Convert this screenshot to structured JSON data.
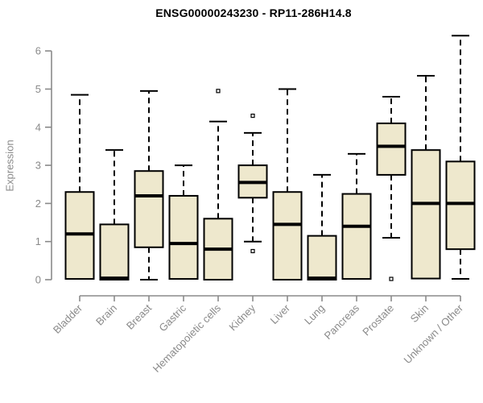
{
  "title": "ENSG00000243230 - RP11-286H14.8",
  "chart_data": {
    "type": "boxplot",
    "title": "ENSG00000243230 - RP11-286H14.8",
    "xlabel": "",
    "ylabel": "Expression",
    "ylim": [
      0,
      6.5
    ],
    "yticks": [
      0,
      1,
      2,
      3,
      4,
      5,
      6
    ],
    "grid": false,
    "categories": [
      "Bladder",
      "Brain",
      "Breast",
      "Gastric",
      "Hematopoietic cells",
      "Kidney",
      "Liver",
      "Lung",
      "Pancreas",
      "Prostate",
      "Skin",
      "Unknown / Other"
    ],
    "boxes": [
      {
        "category": "Bladder",
        "whisker_low": 0,
        "q1": 0.02,
        "median": 1.2,
        "q3": 2.3,
        "whisker_high": 4.85,
        "outliers": []
      },
      {
        "category": "Brain",
        "whisker_low": 0,
        "q1": 0,
        "median": 0.04,
        "q3": 1.45,
        "whisker_high": 3.4,
        "outliers": []
      },
      {
        "category": "Breast",
        "whisker_low": 0,
        "q1": 0.85,
        "median": 2.2,
        "q3": 2.85,
        "whisker_high": 4.95,
        "outliers": []
      },
      {
        "category": "Gastric",
        "whisker_low": 0,
        "q1": 0.02,
        "median": 0.95,
        "q3": 2.2,
        "whisker_high": 3.0,
        "outliers": []
      },
      {
        "category": "Hematopoietic cells",
        "whisker_low": 0,
        "q1": 0,
        "median": 0.8,
        "q3": 1.6,
        "whisker_high": 4.15,
        "outliers": [
          4.95
        ]
      },
      {
        "category": "Kidney",
        "whisker_low": 1.0,
        "q1": 2.15,
        "median": 2.55,
        "q3": 3.0,
        "whisker_high": 3.85,
        "outliers": [
          4.3,
          0.75
        ]
      },
      {
        "category": "Liver",
        "whisker_low": 0,
        "q1": 0,
        "median": 1.45,
        "q3": 2.3,
        "whisker_high": 5.0,
        "outliers": []
      },
      {
        "category": "Lung",
        "whisker_low": 0,
        "q1": 0,
        "median": 0.04,
        "q3": 1.15,
        "whisker_high": 2.75,
        "outliers": []
      },
      {
        "category": "Pancreas",
        "whisker_low": 0,
        "q1": 0.02,
        "median": 1.4,
        "q3": 2.25,
        "whisker_high": 3.3,
        "outliers": []
      },
      {
        "category": "Prostate",
        "whisker_low": 1.1,
        "q1": 2.75,
        "median": 3.5,
        "q3": 4.1,
        "whisker_high": 4.8,
        "outliers": [
          0.02
        ]
      },
      {
        "category": "Skin",
        "whisker_low": 0,
        "q1": 0.03,
        "median": 2.0,
        "q3": 3.4,
        "whisker_high": 5.35,
        "outliers": []
      },
      {
        "category": "Unknown / Other",
        "whisker_low": 0.02,
        "q1": 0.8,
        "median": 2.0,
        "q3": 3.1,
        "whisker_high": 6.4,
        "outliers": []
      }
    ],
    "legend": null,
    "colors": {
      "box_fill": "#EEE8CD",
      "box_border": "#000000",
      "median": "#000000",
      "whisker": "#000000",
      "axis": "#8a8a8a",
      "tick_label": "#8a8a8a",
      "title": "#000000"
    }
  }
}
